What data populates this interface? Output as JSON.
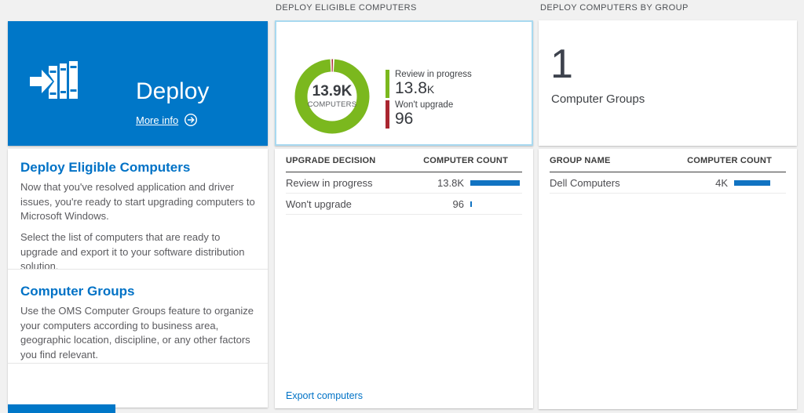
{
  "colors": {
    "tile_blue": "#0077c8",
    "accent_blue": "#0072c6",
    "bar_blue": "#1173c2",
    "donut_green": "#7bb81e",
    "donut_red": "#aa2630",
    "selected_border": "#a8d9f0",
    "page_bg": "#f1f1f1"
  },
  "left": {
    "tile": {
      "title": "Deploy",
      "more_info_label": "More info"
    },
    "panel": {
      "sections": [
        {
          "heading": "Deploy Eligible Computers",
          "para1": "Now that you've resolved application and driver issues, you're ready to start upgrading computers to Microsoft Windows.",
          "para2": "Select the list of computers that are ready to upgrade and export it to your software distribution solution."
        },
        {
          "heading": "Computer Groups",
          "para1": "Use the OMS Computer Groups feature to organize your computers according to business area, geographic location, discipline, or any other factors you find relevant."
        }
      ]
    }
  },
  "middle": {
    "section_header": "DEPLOY ELIGIBLE COMPUTERS",
    "donut": {
      "center_value": "13.9K",
      "center_label": "COMPUTERS",
      "legend": [
        {
          "label": "Review in progress",
          "value": "13.8",
          "suffix": "K"
        },
        {
          "label": "Won't upgrade",
          "value": "96",
          "suffix": ""
        }
      ]
    },
    "table": {
      "col_left": "UPGRADE DECISION",
      "col_right": "COMPUTER COUNT",
      "rows": [
        {
          "label": "Review in progress",
          "value": "13.8K",
          "bar_width": "63"
        },
        {
          "label": "Won't upgrade",
          "value": "96",
          "bar_width": "2"
        }
      ]
    },
    "export_link": "Export computers"
  },
  "right": {
    "section_header": "DEPLOY COMPUTERS BY GROUP",
    "summary": {
      "count": "1",
      "label": "Computer Groups"
    },
    "table": {
      "col_left": "GROUP NAME",
      "col_right": "COMPUTER COUNT",
      "rows": [
        {
          "label": "Dell Computers",
          "value": "4K",
          "bar_width": "46"
        }
      ]
    }
  }
}
